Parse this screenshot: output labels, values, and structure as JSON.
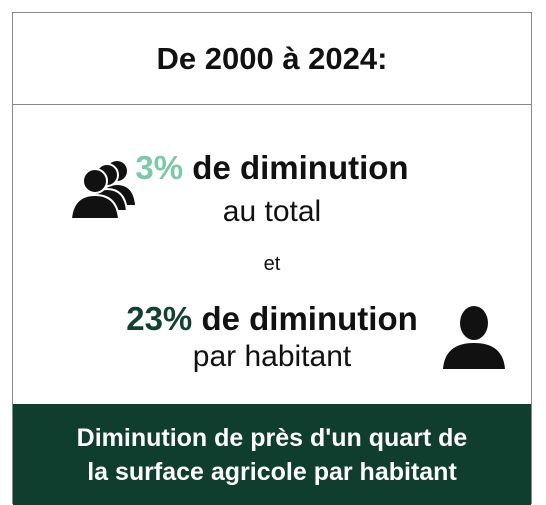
{
  "header": {
    "title": "De 2000 à 2024:"
  },
  "body": {
    "total": {
      "percent": "3%",
      "text": "de diminution",
      "sub": "au total"
    },
    "joiner": "et",
    "per_capita": {
      "percent": "23%",
      "text": "de diminution",
      "sub": "par habitant"
    }
  },
  "footer": {
    "lines": [
      "Diminution de près d'un quart de",
      "la surface agricole par habitant"
    ]
  }
}
